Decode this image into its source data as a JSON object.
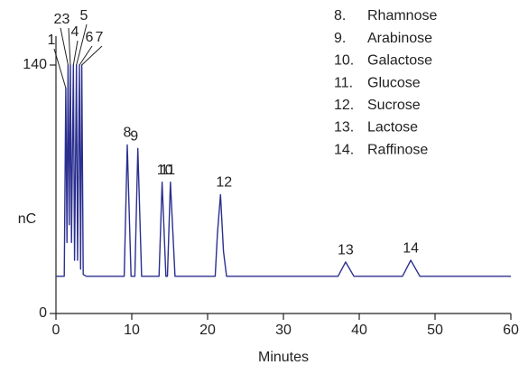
{
  "chart_data": {
    "type": "line",
    "x_label": "Minutes",
    "y_label": "nC",
    "x": [
      0,
      1.1,
      1.3,
      1.45,
      1.6,
      1.75,
      1.9,
      2.05,
      2.3,
      2.45,
      2.7,
      2.85,
      3.1,
      3.25,
      3.4,
      3.6,
      4.0,
      9.0,
      9.4,
      9.9,
      10.4,
      10.8,
      11.3,
      13.6,
      14.0,
      14.5,
      14.7,
      15.1,
      15.7,
      21.0,
      21.3,
      21.7,
      22.1,
      22.5,
      37.2,
      38.2,
      39.3,
      45.7,
      46.8,
      48.0,
      60
    ],
    "series": [
      {
        "color": "#2b2f8f",
        "values": [
          21,
          21,
          127,
          40,
          140,
          50,
          140,
          40,
          140,
          30,
          140,
          30,
          140,
          25,
          140,
          22,
          21,
          21,
          95,
          21,
          21,
          93,
          21,
          21,
          74,
          21,
          21,
          74,
          21,
          21,
          45,
          67,
          35,
          21,
          21,
          29,
          21,
          21,
          30,
          21,
          21
        ]
      }
    ],
    "xlim": [
      0,
      60
    ],
    "xticks": [
      0,
      10,
      20,
      30,
      40,
      50,
      60
    ],
    "ylim": [
      0,
      140
    ],
    "yticks": [
      0,
      140
    ],
    "annotations": [
      {
        "text": "1",
        "x": 1.3,
        "y": 127
      },
      {
        "text": "2",
        "x": 1.6,
        "y": 140
      },
      {
        "text": "3",
        "x": 1.9,
        "y": 140
      },
      {
        "text": "4",
        "x": 2.3,
        "y": 140
      },
      {
        "text": "5",
        "x": 2.7,
        "y": 140
      },
      {
        "text": "6",
        "x": 3.1,
        "y": 140
      },
      {
        "text": "7",
        "x": 3.4,
        "y": 140
      },
      {
        "text": "8",
        "x": 9.4,
        "y": 95
      },
      {
        "text": "9",
        "x": 10.8,
        "y": 93
      },
      {
        "text": "10",
        "x": 14.0,
        "y": 74
      },
      {
        "text": "11",
        "x": 15.1,
        "y": 74
      },
      {
        "text": "12",
        "x": 21.7,
        "y": 67
      },
      {
        "text": "13",
        "x": 38.2,
        "y": 29
      },
      {
        "text": "14",
        "x": 46.8,
        "y": 30
      }
    ],
    "legend": [
      {
        "number": "8.",
        "name": "Rhamnose"
      },
      {
        "number": "9.",
        "name": "Arabinose"
      },
      {
        "number": "10.",
        "name": "Galactose"
      },
      {
        "number": "11.",
        "name": "Glucose"
      },
      {
        "number": "12.",
        "name": "Sucrose"
      },
      {
        "number": "13.",
        "name": "Lactose"
      },
      {
        "number": "14.",
        "name": "Raffinose"
      }
    ]
  }
}
